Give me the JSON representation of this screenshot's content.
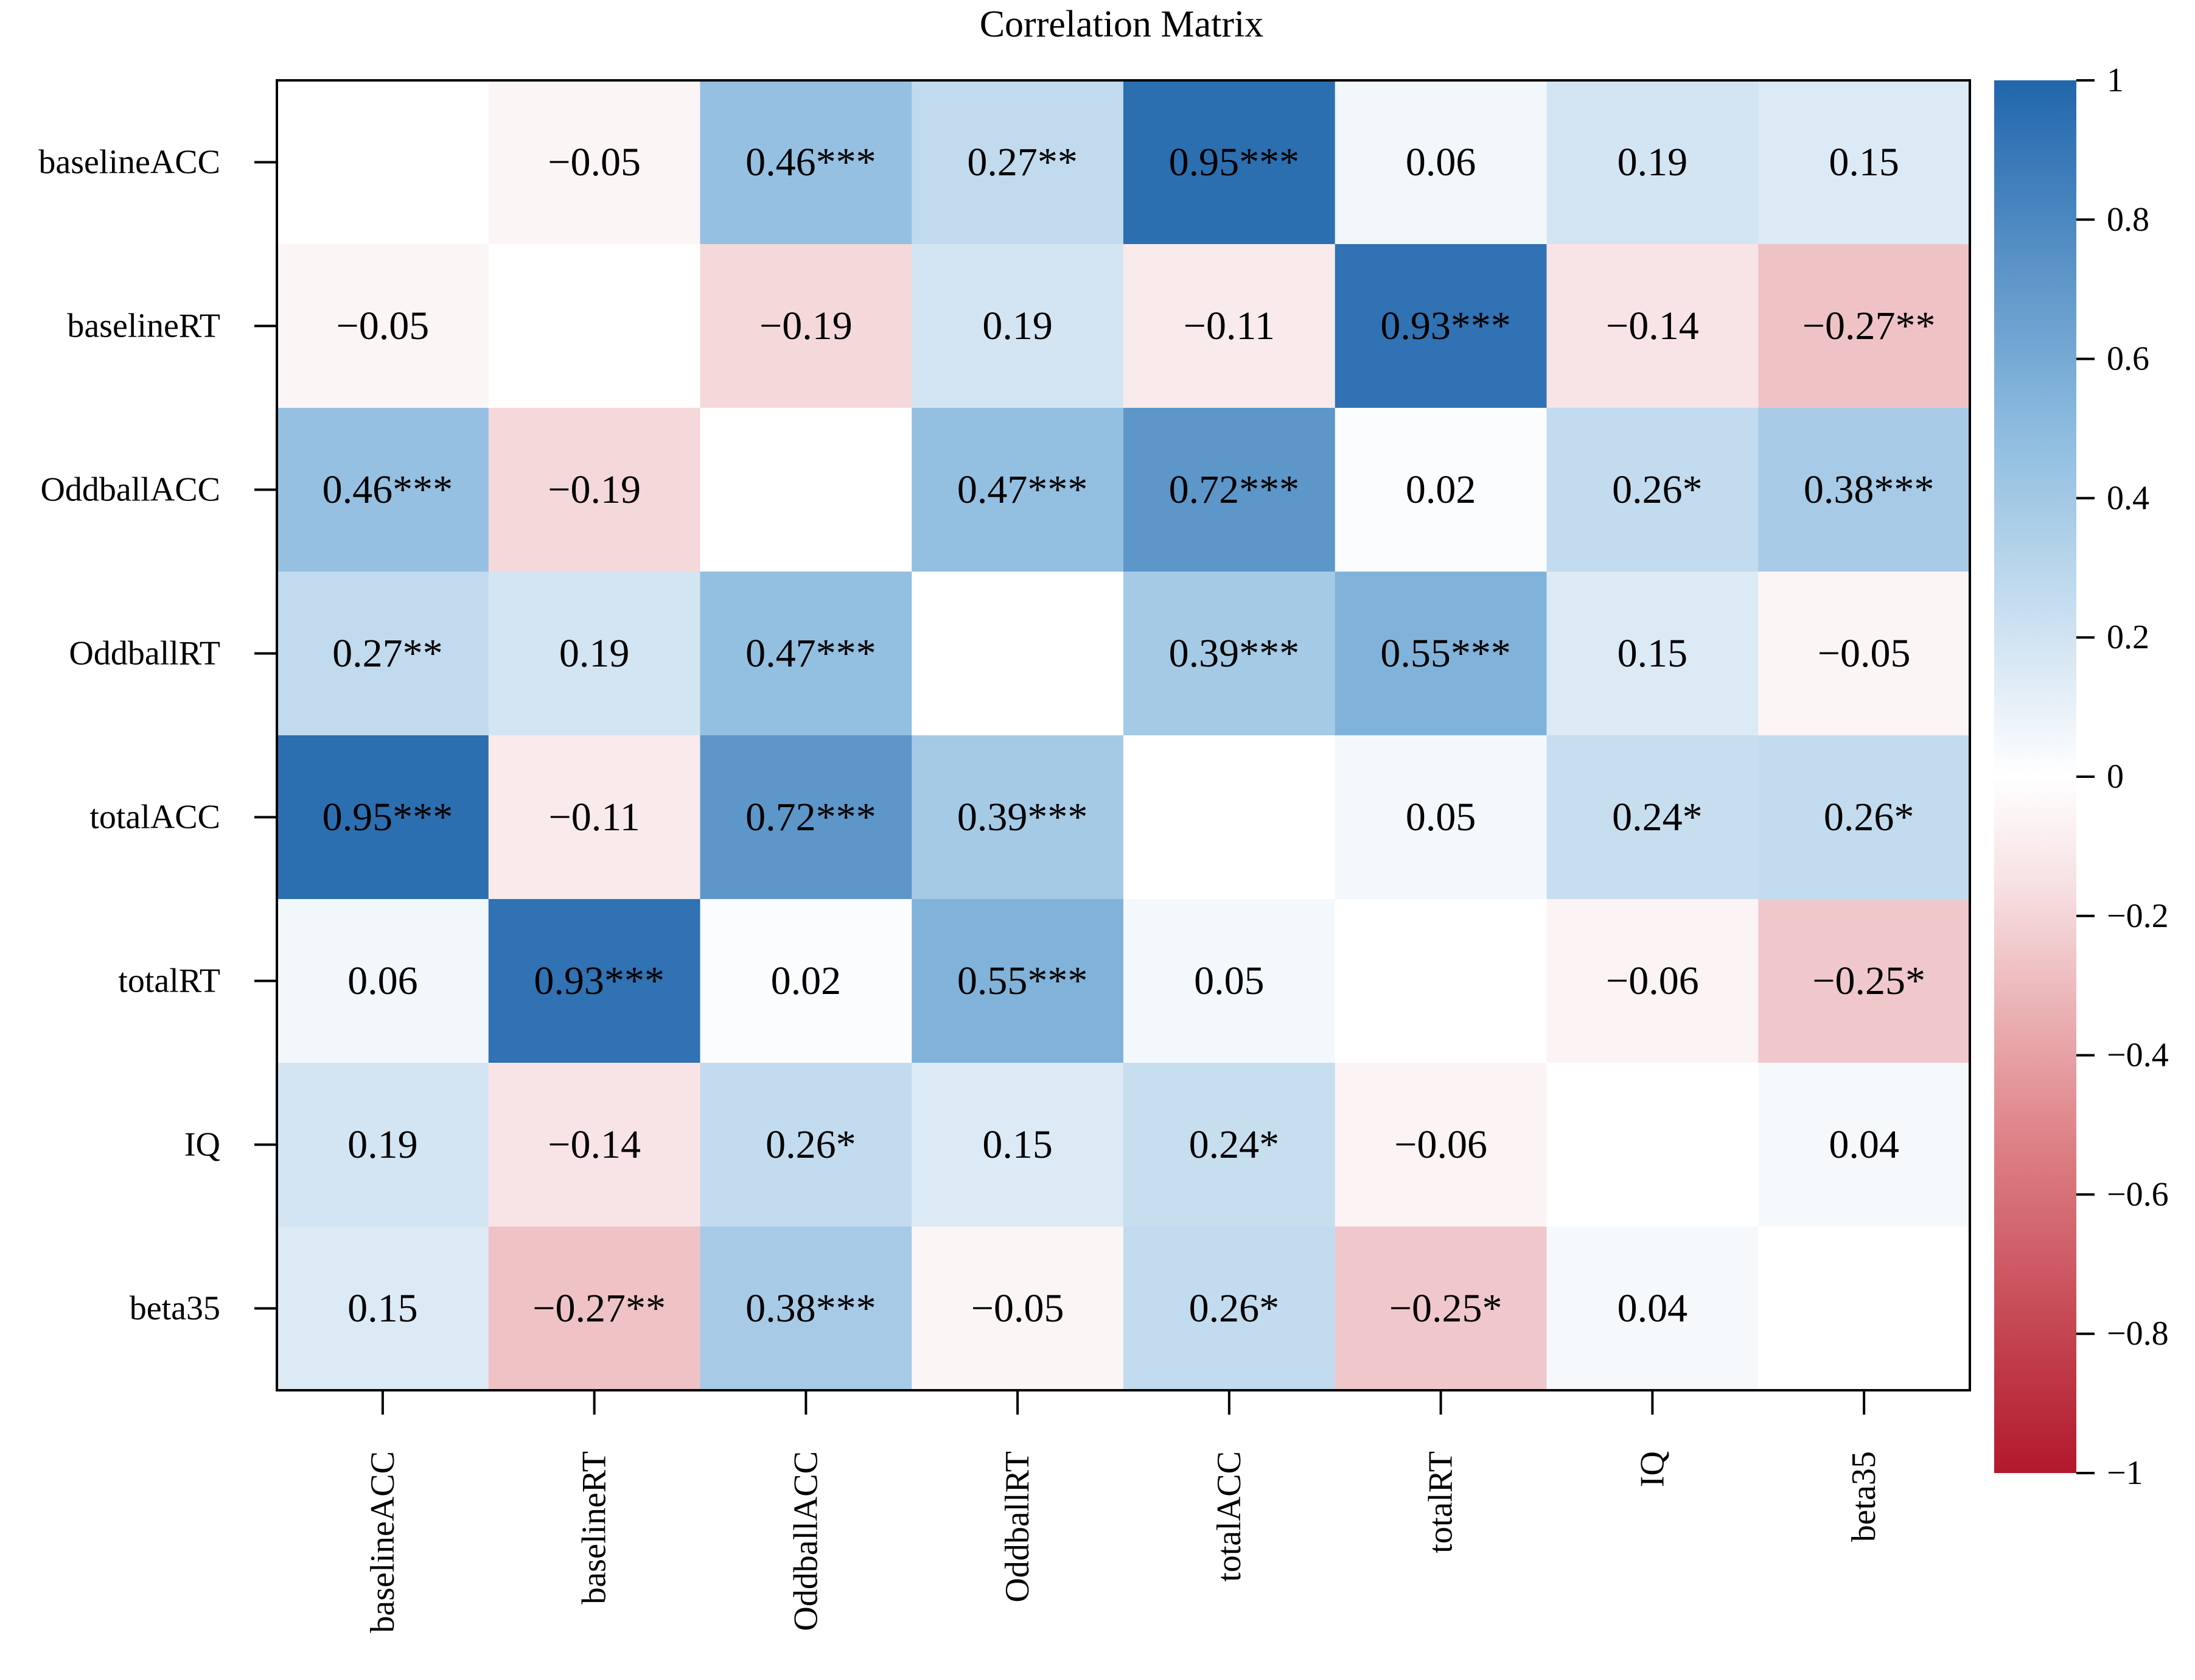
{
  "chart_data": {
    "type": "heatmap",
    "title": "Correlation Matrix",
    "variables": [
      "baselineACC",
      "baselineRT",
      "OddballACC",
      "OddballRT",
      "totalACC",
      "totalRT",
      "IQ",
      "beta35"
    ],
    "values": [
      [
        null,
        -0.05,
        0.46,
        0.27,
        0.95,
        0.06,
        0.19,
        0.15
      ],
      [
        -0.05,
        null,
        -0.19,
        0.19,
        -0.11,
        0.93,
        -0.14,
        -0.27
      ],
      [
        0.46,
        -0.19,
        null,
        0.47,
        0.72,
        0.02,
        0.26,
        0.38
      ],
      [
        0.27,
        0.19,
        0.47,
        null,
        0.39,
        0.55,
        0.15,
        -0.05
      ],
      [
        0.95,
        -0.11,
        0.72,
        0.39,
        null,
        0.05,
        0.24,
        0.26
      ],
      [
        0.06,
        0.93,
        0.02,
        0.55,
        0.05,
        null,
        -0.06,
        -0.25
      ],
      [
        0.19,
        -0.14,
        0.26,
        0.15,
        0.24,
        -0.06,
        null,
        0.04
      ],
      [
        0.15,
        -0.27,
        0.38,
        -0.05,
        0.26,
        -0.25,
        0.04,
        null
      ]
    ],
    "labels": [
      [
        "",
        "−0.05",
        "0.46***",
        "0.27**",
        "0.95***",
        "0.06",
        "0.19",
        "0.15"
      ],
      [
        "−0.05",
        "",
        "−0.19",
        "0.19",
        "−0.11",
        "0.93***",
        "−0.14",
        "−0.27**"
      ],
      [
        "0.46***",
        "−0.19",
        "",
        "0.47***",
        "0.72***",
        "0.02",
        "0.26*",
        "0.38***"
      ],
      [
        "0.27**",
        "0.19",
        "0.47***",
        "",
        "0.39***",
        "0.55***",
        "0.15",
        "−0.05"
      ],
      [
        "0.95***",
        "−0.11",
        "0.72***",
        "0.39***",
        "",
        "0.05",
        "0.24*",
        "0.26*"
      ],
      [
        "0.06",
        "0.93***",
        "0.02",
        "0.55***",
        "0.05",
        "",
        "−0.06",
        "−0.25*"
      ],
      [
        "0.19",
        "−0.14",
        "0.26*",
        "0.15",
        "0.24*",
        "−0.06",
        "",
        "0.04"
      ],
      [
        "0.15",
        "−0.27**",
        "0.38***",
        "−0.05",
        "0.26*",
        "−0.25*",
        "0.04",
        ""
      ]
    ],
    "color_scale": {
      "range": [
        -1,
        1
      ],
      "ticks": [
        1,
        0.8,
        0.6,
        0.4,
        0.2,
        0,
        -0.2,
        -0.4,
        -0.6,
        -0.8,
        -1
      ],
      "tick_labels": [
        "1",
        "0.8",
        "0.6",
        "0.4",
        "0.2",
        "0",
        "−0.2",
        "−0.4",
        "−0.6",
        "−0.8",
        "−1"
      ],
      "stops": [
        {
          "value": -1,
          "color": "#B2182B"
        },
        {
          "value": -0.5,
          "color": "#E0878B"
        },
        {
          "value": -0.15,
          "color": "#F7E2E4"
        },
        {
          "value": 0,
          "color": "#FFFFFF"
        },
        {
          "value": 0.15,
          "color": "#DCEAF5"
        },
        {
          "value": 0.5,
          "color": "#8CBBDF"
        },
        {
          "value": 1,
          "color": "#2166AC"
        }
      ]
    },
    "legend": "right",
    "diagonal": "blank"
  }
}
